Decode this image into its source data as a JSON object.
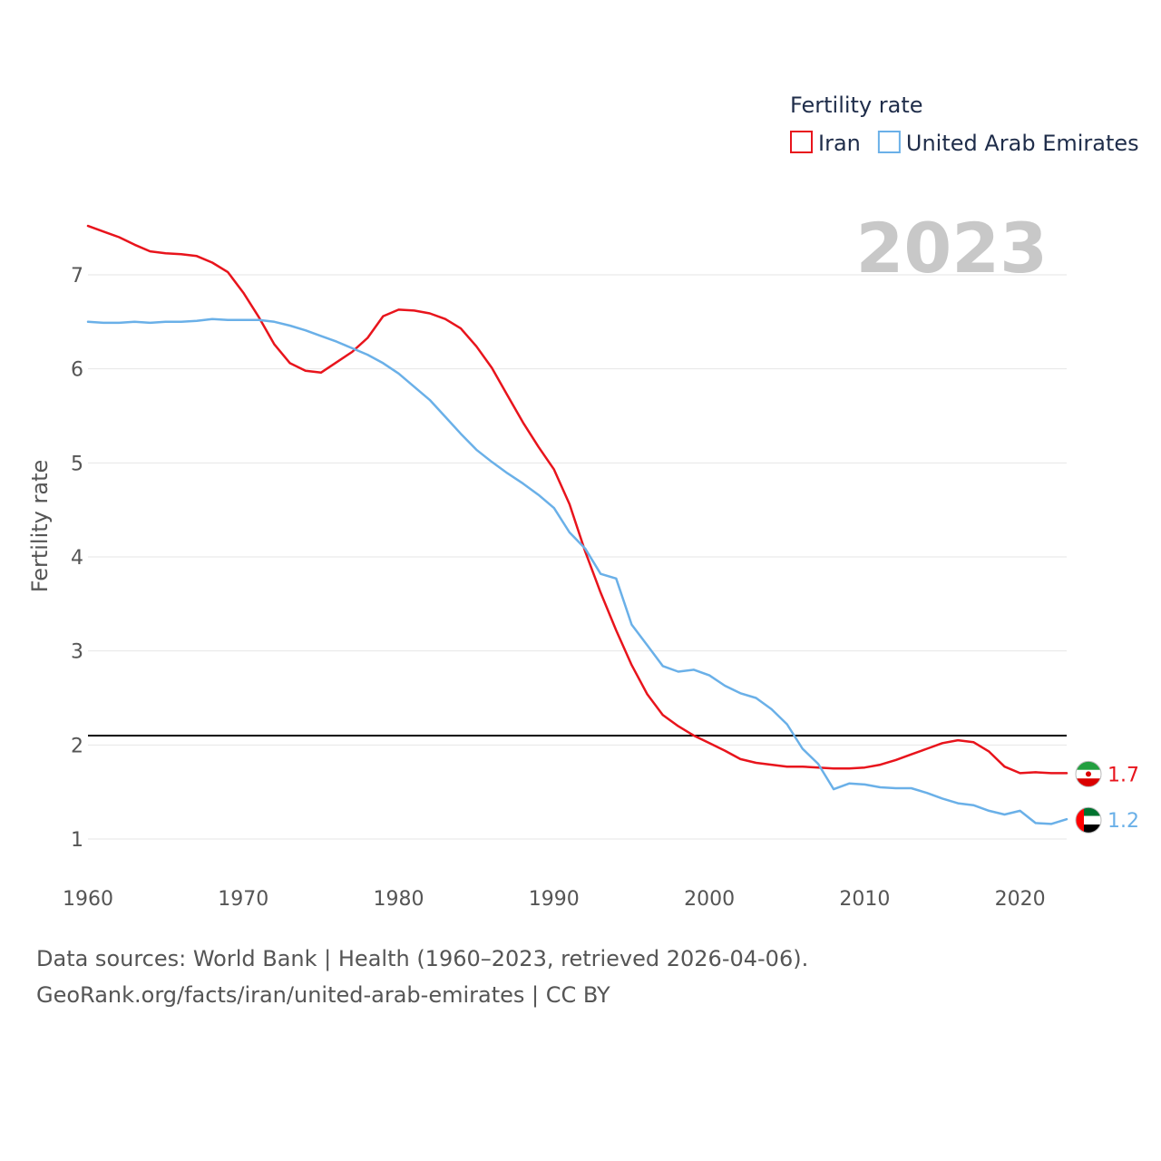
{
  "chart_data": {
    "type": "line",
    "title": "",
    "legend_title": "Fertility rate",
    "current_year_label": "2023",
    "xlabel": "",
    "ylabel": "Fertility rate",
    "xlim": [
      1960,
      2023
    ],
    "ylim": [
      0.55,
      7.7
    ],
    "x_ticks": [
      1960,
      1970,
      1980,
      1990,
      2000,
      2010,
      2020
    ],
    "y_ticks": [
      1,
      2,
      3,
      4,
      5,
      6,
      7
    ],
    "reference_line": {
      "value": 2.1,
      "color": "#000000"
    },
    "x": [
      1960,
      1961,
      1962,
      1963,
      1964,
      1965,
      1966,
      1967,
      1968,
      1969,
      1970,
      1971,
      1972,
      1973,
      1974,
      1975,
      1976,
      1977,
      1978,
      1979,
      1980,
      1981,
      1982,
      1983,
      1984,
      1985,
      1986,
      1987,
      1988,
      1989,
      1990,
      1991,
      1992,
      1993,
      1994,
      1995,
      1996,
      1997,
      1998,
      1999,
      2000,
      2001,
      2002,
      2003,
      2004,
      2005,
      2006,
      2007,
      2008,
      2009,
      2010,
      2011,
      2012,
      2013,
      2014,
      2015,
      2016,
      2017,
      2018,
      2019,
      2020,
      2021,
      2022,
      2023
    ],
    "series": [
      {
        "name": "Iran",
        "color": "#e8141c",
        "end_label": "1.7",
        "values": [
          7.52,
          7.46,
          7.4,
          7.32,
          7.25,
          7.23,
          7.22,
          7.2,
          7.13,
          7.03,
          6.81,
          6.55,
          6.26,
          6.06,
          5.98,
          5.96,
          6.07,
          6.18,
          6.33,
          6.56,
          6.63,
          6.62,
          6.59,
          6.53,
          6.43,
          6.24,
          6.01,
          5.72,
          5.43,
          5.17,
          4.93,
          4.56,
          4.06,
          3.62,
          3.22,
          2.85,
          2.54,
          2.32,
          2.2,
          2.1,
          2.02,
          1.94,
          1.85,
          1.81,
          1.79,
          1.77,
          1.77,
          1.76,
          1.75,
          1.75,
          1.76,
          1.79,
          1.84,
          1.9,
          1.96,
          2.02,
          2.05,
          2.03,
          1.93,
          1.77,
          1.7,
          1.71,
          1.7,
          1.7
        ]
      },
      {
        "name": "United Arab Emirates",
        "color": "#6ab0e8",
        "end_label": "1.2",
        "values": [
          6.5,
          6.49,
          6.49,
          6.5,
          6.49,
          6.5,
          6.5,
          6.51,
          6.53,
          6.52,
          6.52,
          6.52,
          6.5,
          6.46,
          6.41,
          6.35,
          6.29,
          6.22,
          6.15,
          6.06,
          5.95,
          5.81,
          5.67,
          5.49,
          5.31,
          5.14,
          5.01,
          4.89,
          4.78,
          4.66,
          4.52,
          4.26,
          4.09,
          3.82,
          3.77,
          3.28,
          3.06,
          2.84,
          2.78,
          2.8,
          2.74,
          2.63,
          2.55,
          2.5,
          2.38,
          2.22,
          1.96,
          1.8,
          1.53,
          1.59,
          1.58,
          1.55,
          1.54,
          1.54,
          1.49,
          1.43,
          1.38,
          1.36,
          1.3,
          1.26,
          1.3,
          1.17,
          1.16,
          1.21
        ]
      }
    ]
  },
  "source": {
    "line1": "Data sources: World Bank | Health (1960–2023, retrieved 2026-04-06).",
    "line2": "GeoRank.org/facts/iran/united-arab-emirates | CC BY"
  }
}
